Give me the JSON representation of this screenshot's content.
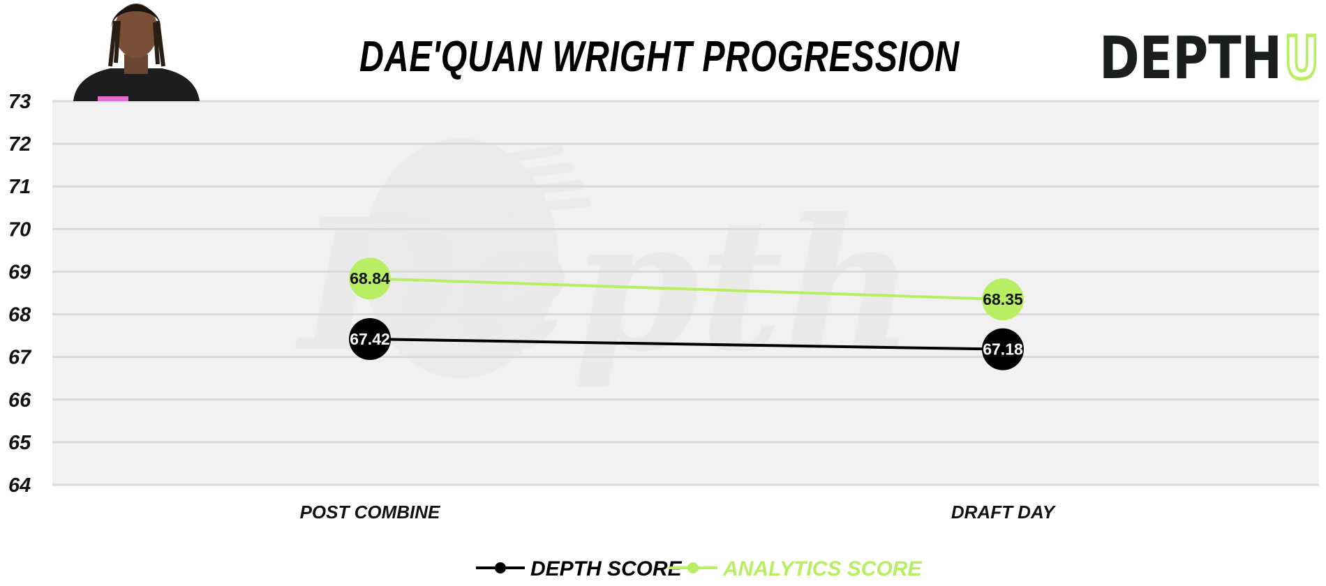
{
  "header": {
    "title": "DAE'QUAN WRIGHT PROGRESSION",
    "logo_main": "DEPTH",
    "logo_accent": "U"
  },
  "watermark": "Depth",
  "colors": {
    "depth": "#000000",
    "analytics": "#b7ee63",
    "plot_bg": "#f1f1f1",
    "grid": "#d9d9d9",
    "logo_dark": "#1b1f1b",
    "logo_accent": "#b7ee63"
  },
  "chart_data": {
    "type": "line",
    "title": "DAE'QUAN WRIGHT PROGRESSION",
    "categories": [
      "POST COMBINE",
      "DRAFT DAY"
    ],
    "ylim": [
      64,
      73
    ],
    "yticks": [
      64,
      65,
      66,
      67,
      68,
      69,
      70,
      71,
      72,
      73
    ],
    "grid": true,
    "legend_position": "bottom",
    "series": [
      {
        "name": "DEPTH SCORE",
        "values": [
          67.42,
          67.18
        ],
        "color": "#000000",
        "label_color": "#ffffff"
      },
      {
        "name": "ANALYTICS SCORE",
        "values": [
          68.84,
          68.35
        ],
        "color": "#b7ee63",
        "label_color": "#111111"
      }
    ]
  }
}
